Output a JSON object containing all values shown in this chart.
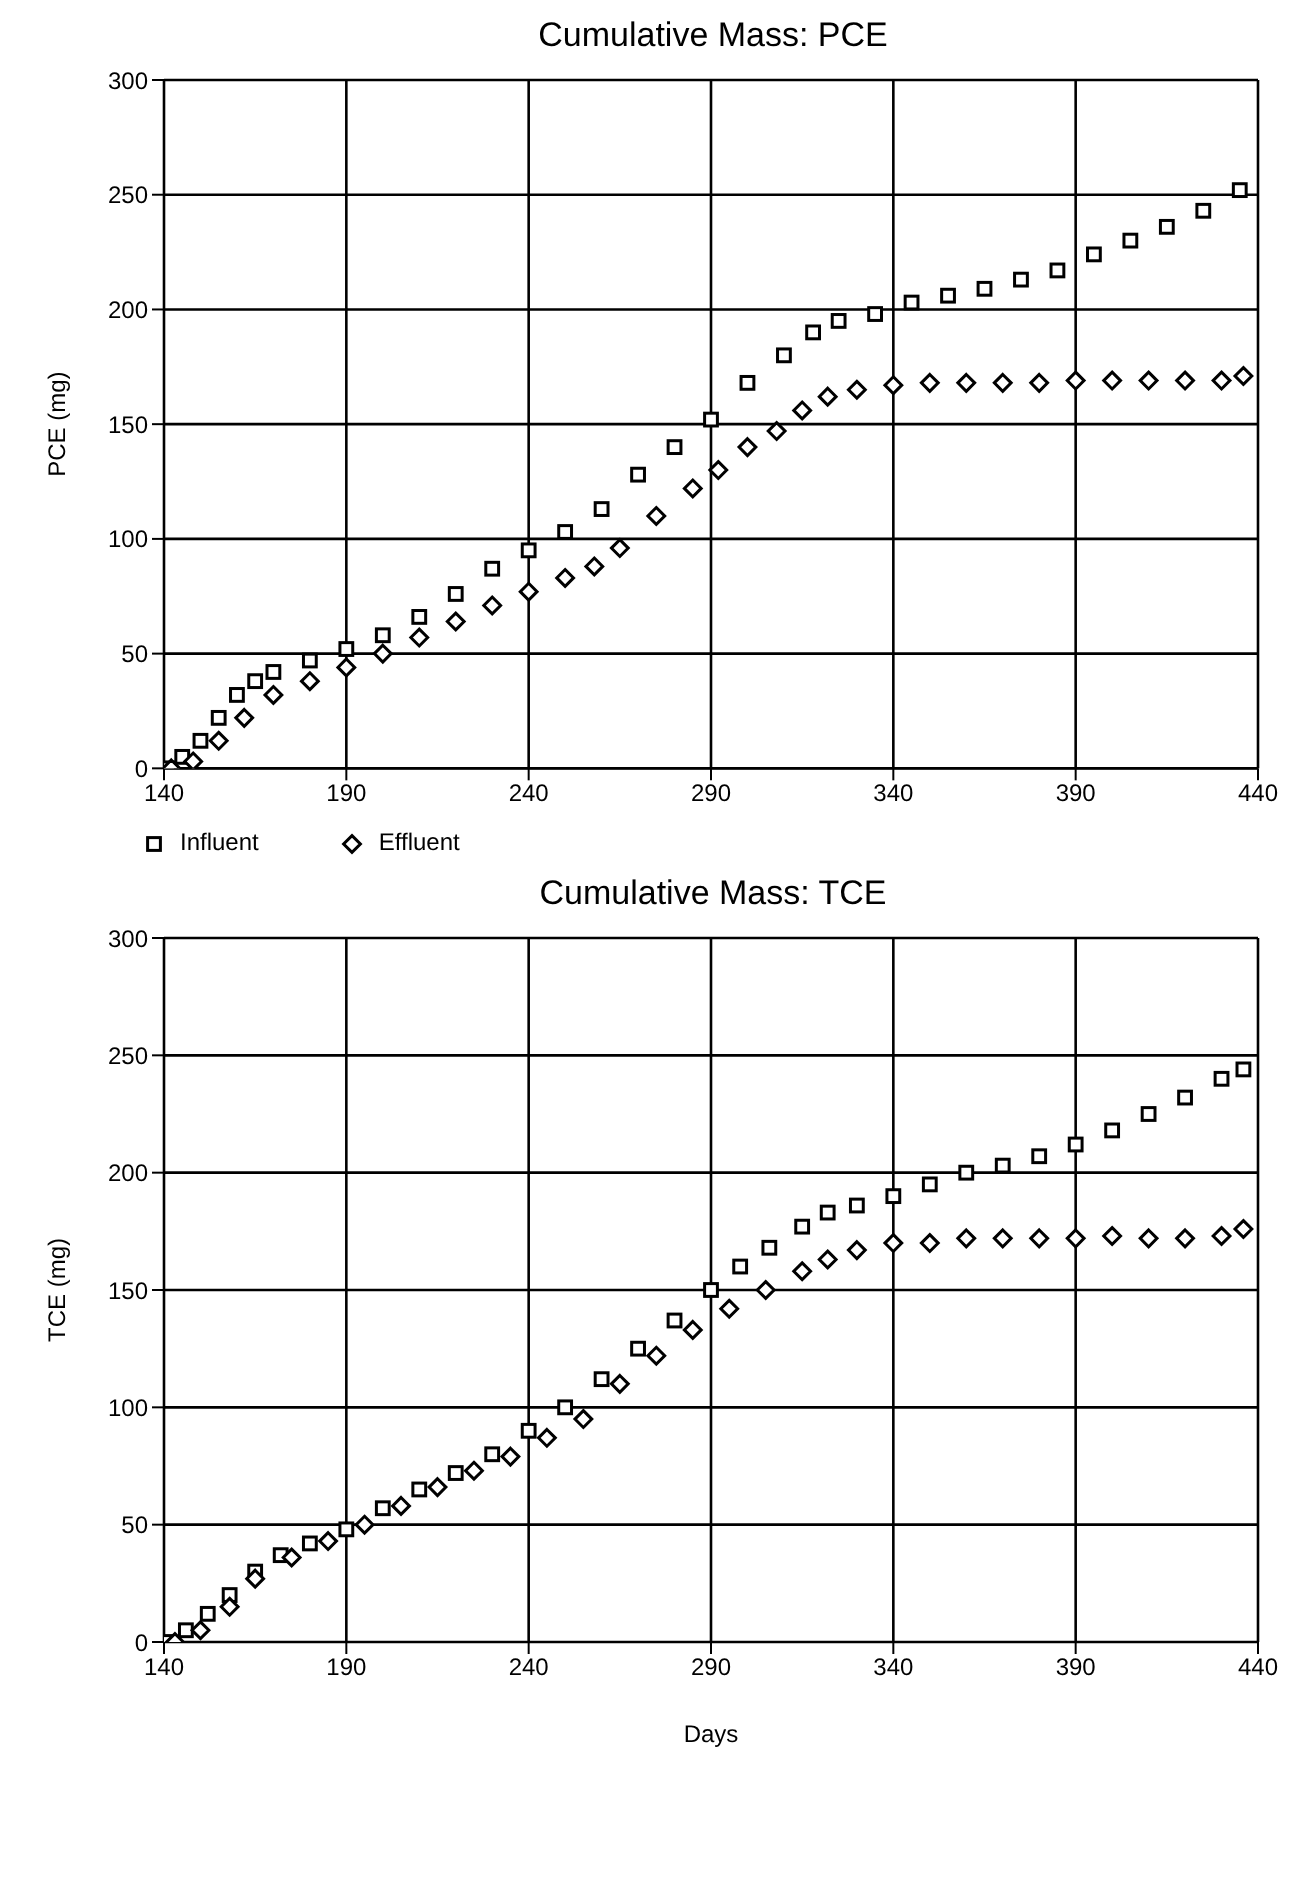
{
  "chart_data": [
    {
      "type": "scatter",
      "title": "Cumulative Mass: PCE",
      "ylabel": "PCE (mg)",
      "xlim": [
        140,
        440
      ],
      "xticks": [
        140,
        190,
        240,
        290,
        340,
        390,
        440
      ],
      "ylim": [
        0,
        300
      ],
      "yticks": [
        0,
        50,
        100,
        150,
        200,
        250,
        300
      ],
      "grid": true,
      "legend": "bottom",
      "series": [
        {
          "name": "Influent",
          "color": "#000000",
          "marker": "square",
          "x": [
            141,
            145,
            150,
            155,
            160,
            165,
            170,
            180,
            190,
            200,
            210,
            220,
            230,
            240,
            250,
            260,
            270,
            280,
            290,
            300,
            310,
            318,
            325,
            335,
            345,
            355,
            365,
            375,
            385,
            395,
            405,
            415,
            425,
            435
          ],
          "values": [
            0,
            5,
            12,
            22,
            32,
            38,
            42,
            47,
            52,
            58,
            66,
            76,
            87,
            95,
            103,
            113,
            128,
            140,
            152,
            168,
            180,
            190,
            195,
            198,
            203,
            206,
            209,
            213,
            217,
            224,
            230,
            236,
            243,
            252
          ]
        },
        {
          "name": "Effluent",
          "color": "#000000",
          "marker": "diamond",
          "x": [
            142,
            148,
            155,
            162,
            170,
            180,
            190,
            200,
            210,
            220,
            230,
            240,
            250,
            258,
            265,
            275,
            285,
            292,
            300,
            308,
            315,
            322,
            330,
            340,
            350,
            360,
            370,
            380,
            390,
            400,
            410,
            420,
            430,
            436
          ],
          "values": [
            0,
            3,
            12,
            22,
            32,
            38,
            44,
            50,
            57,
            64,
            71,
            77,
            83,
            88,
            96,
            110,
            122,
            130,
            140,
            147,
            156,
            162,
            165,
            167,
            168,
            168,
            168,
            168,
            169,
            169,
            169,
            169,
            169,
            171
          ]
        }
      ]
    },
    {
      "type": "scatter",
      "title": "Cumulative Mass: TCE",
      "ylabel": "TCE (mg)",
      "xlabel": "Days",
      "xlim": [
        140,
        440
      ],
      "xticks": [
        140,
        190,
        240,
        290,
        340,
        390,
        440
      ],
      "ylim": [
        0,
        300
      ],
      "yticks": [
        0,
        50,
        100,
        150,
        200,
        250,
        300
      ],
      "grid": true,
      "series": [
        {
          "color": "#000000",
          "marker": "square",
          "x": [
            141,
            146,
            152,
            158,
            165,
            172,
            180,
            190,
            200,
            210,
            220,
            230,
            240,
            250,
            260,
            270,
            280,
            290,
            298,
            306,
            315,
            322,
            330,
            340,
            350,
            360,
            370,
            380,
            390,
            400,
            410,
            420,
            430,
            436
          ],
          "values": [
            0,
            5,
            12,
            20,
            30,
            37,
            42,
            48,
            57,
            65,
            72,
            80,
            90,
            100,
            112,
            125,
            137,
            150,
            160,
            168,
            177,
            183,
            186,
            190,
            195,
            200,
            203,
            207,
            212,
            218,
            225,
            232,
            240,
            244
          ]
        },
        {
          "color": "#000000",
          "marker": "diamond",
          "x": [
            143,
            150,
            158,
            165,
            175,
            185,
            195,
            205,
            215,
            225,
            235,
            245,
            255,
            265,
            275,
            285,
            295,
            305,
            315,
            322,
            330,
            340,
            350,
            360,
            370,
            380,
            390,
            400,
            410,
            420,
            430,
            436
          ],
          "values": [
            0,
            5,
            15,
            27,
            36,
            43,
            50,
            58,
            66,
            73,
            79,
            87,
            95,
            110,
            122,
            133,
            142,
            150,
            158,
            163,
            167,
            170,
            170,
            172,
            172,
            172,
            172,
            173,
            172,
            172,
            173,
            176
          ]
        }
      ]
    }
  ]
}
